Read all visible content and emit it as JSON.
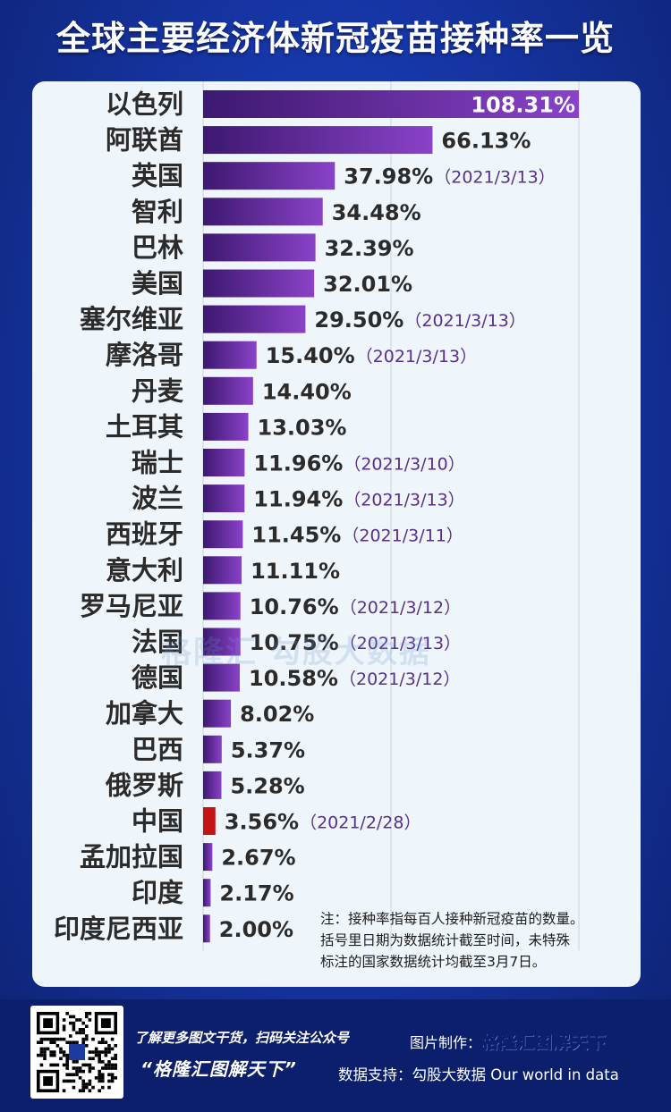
{
  "title": "全球主要经济体新冠疫苗接种率一览",
  "chart_data": {
    "type": "bar",
    "orientation": "horizontal",
    "title": "全球主要经济体新冠疫苗接种率一览",
    "xlim": [
      0,
      108.31
    ],
    "grid": true,
    "categories": [
      "以色列",
      "阿联酋",
      "英国",
      "智利",
      "巴林",
      "美国",
      "塞尔维亚",
      "摩洛哥",
      "丹麦",
      "土耳其",
      "瑞士",
      "波兰",
      "西班牙",
      "意大利",
      "罗马尼亚",
      "法国",
      "德国",
      "加拿大",
      "巴西",
      "俄罗斯",
      "中国",
      "孟加拉国",
      "印度",
      "印度尼西亚"
    ],
    "values": [
      108.31,
      66.13,
      37.98,
      34.48,
      32.39,
      32.01,
      29.5,
      15.4,
      14.4,
      13.03,
      11.96,
      11.94,
      11.45,
      11.11,
      10.76,
      10.75,
      10.58,
      8.02,
      5.37,
      5.28,
      3.56,
      2.67,
      2.17,
      2.0
    ],
    "value_labels": [
      "108.31%",
      "66.13%",
      "37.98%",
      "34.48%",
      "32.39%",
      "32.01%",
      "29.50%",
      "15.40%",
      "14.40%",
      "13.03%",
      "11.96%",
      "11.94%",
      "11.45%",
      "11.11%",
      "10.76%",
      "10.75%",
      "10.58%",
      "8.02%",
      "5.37%",
      "5.28%",
      "3.56%",
      "2.67%",
      "2.17%",
      "2.00%"
    ],
    "date_labels": [
      "",
      "",
      "（2021/3/13）",
      "",
      "",
      "",
      "（2021/3/13）",
      "（2021/3/13）",
      "",
      "",
      "（2021/3/10）",
      "（2021/3/13）",
      "（2021/3/11）",
      "",
      "（2021/3/12）",
      "（2021/3/13）",
      "（2021/3/12）",
      "",
      "",
      "",
      "（2021/2/28）",
      "",
      "",
      ""
    ],
    "highlight_index": 20,
    "colors": {
      "bar_dark": "#3d1870",
      "bar_light": "#8a42c8",
      "highlight": "#c41414",
      "date_text": "#5a2f8e"
    }
  },
  "watermark": "格隆汇  勾股大数据",
  "note": {
    "line1": "注：接种率指每百人接种新冠疫苗的数量。",
    "line2": "括号里日期为数据统计截至时间，未特殊",
    "line3": "标注的国家数据统计均截至3月7日。"
  },
  "footer": {
    "slogan_line1": "了解更多图文干货，扫码关注公众号",
    "slogan_line2": "“格隆汇图解天下”",
    "maker_label": "图片制作：",
    "maker_brand": "格隆汇图解天下",
    "source_label": "数据支持：",
    "source_value": "勾股大数据  Our world in data",
    "qr_icon": "qr-code-icon"
  }
}
